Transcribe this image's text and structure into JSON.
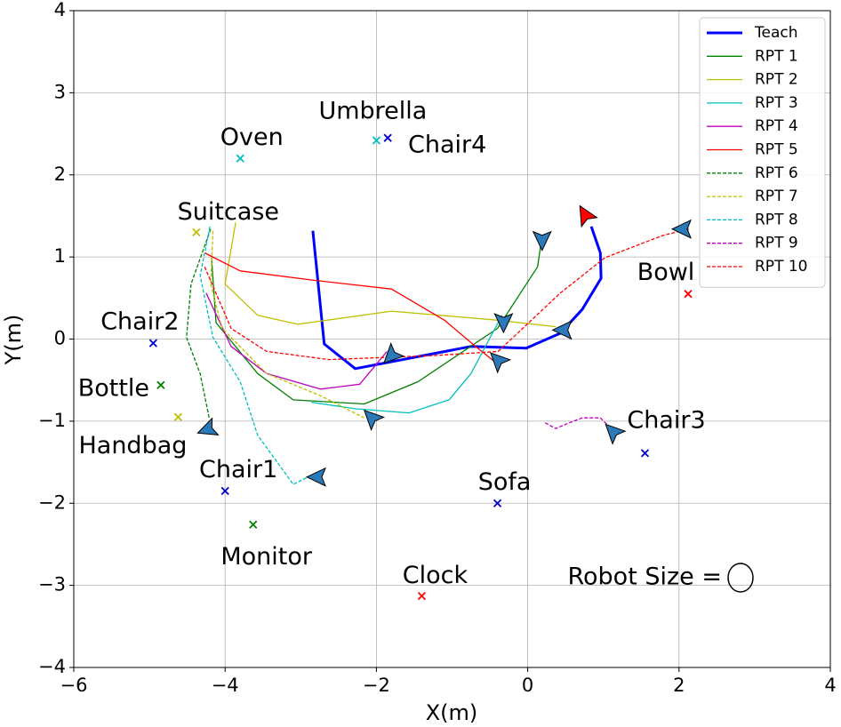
{
  "chart_data": {
    "type": "line",
    "xlabel": "X(m)",
    "ylabel": "Y(m)",
    "xlim": [
      -6,
      4
    ],
    "ylim": [
      -4,
      4
    ],
    "xticks": [
      {
        "value": -6,
        "label": "−6"
      },
      {
        "value": -4,
        "label": "−4"
      },
      {
        "value": -2,
        "label": "−2"
      },
      0,
      2,
      4
    ],
    "yticks": [
      {
        "value": -4,
        "label": "−4"
      },
      {
        "value": -3,
        "label": "−3"
      },
      {
        "value": -2,
        "label": "−2"
      },
      {
        "value": -1,
        "label": "−1"
      },
      0,
      1,
      2,
      3,
      4
    ],
    "grid": true,
    "legend": "upper right",
    "series": [
      {
        "name": "Teach",
        "color": "#0000ff",
        "dashed": false,
        "width": 3,
        "x": [
          -2.84,
          -2.69,
          -2.28,
          -0.75,
          -0.02,
          0.43,
          0.72,
          0.97,
          0.96,
          0.84
        ],
        "y": [
          1.32,
          -0.06,
          -0.36,
          -0.09,
          -0.11,
          0.07,
          0.36,
          0.74,
          1.05,
          1.37
        ]
      },
      {
        "name": "RPT 1",
        "color": "#008000",
        "dashed": false,
        "width": 1.3,
        "x": [
          -4.18,
          -4.12,
          -3.57,
          -3.1,
          -2.16,
          -1.45,
          -0.4,
          0.13,
          0.19
        ],
        "y": [
          0.99,
          0.2,
          -0.42,
          -0.74,
          -0.79,
          -0.52,
          0.13,
          0.88,
          1.26
        ]
      },
      {
        "name": "RPT 2",
        "color": "#bfbf00",
        "dashed": false,
        "width": 1.3,
        "x": [
          -3.86,
          -4.0,
          -3.57,
          -3.04,
          -1.8,
          -0.39,
          0.37
        ],
        "y": [
          1.42,
          0.67,
          0.29,
          0.18,
          0.34,
          0.23,
          0.15
        ]
      },
      {
        "name": "RPT 3",
        "color": "#00bfbf",
        "dashed": false,
        "width": 1.3,
        "x": [
          -2.86,
          -2.27,
          -1.57,
          -1.04,
          -0.75,
          -0.34
        ],
        "y": [
          -0.77,
          -0.85,
          -0.9,
          -0.74,
          -0.42,
          0.29
        ]
      },
      {
        "name": "RPT 4",
        "color": "#bf00bf",
        "dashed": false,
        "width": 1.3,
        "x": [
          -4.25,
          -3.92,
          -3.45,
          -2.74,
          -2.22,
          -1.86
        ],
        "y": [
          0.56,
          -0.09,
          -0.42,
          -0.61,
          -0.55,
          -0.15
        ]
      },
      {
        "name": "RPT 5",
        "color": "#ff0000",
        "dashed": false,
        "width": 1.3,
        "x": [
          -4.27,
          -3.8,
          -2.86,
          -1.8,
          -1.1,
          -0.69,
          -0.39
        ],
        "y": [
          1.05,
          0.83,
          0.72,
          0.61,
          0.23,
          -0.09,
          -0.31
        ]
      },
      {
        "name": "RPT 6",
        "color": "#008000",
        "dashed": true,
        "width": 1.3,
        "x": [
          -4.19,
          -4.45,
          -4.51,
          -4.33,
          -4.21
        ],
        "y": [
          1.34,
          0.67,
          0.02,
          -0.42,
          -0.96
        ]
      },
      {
        "name": "RPT 7",
        "color": "#bfbf00",
        "dashed": true,
        "width": 1.3,
        "x": [
          -4.16,
          -4.19,
          -4.04,
          -3.45,
          -2.74,
          -2.16
        ],
        "y": [
          1.32,
          0.67,
          0.13,
          -0.42,
          -0.69,
          -0.96
        ]
      },
      {
        "name": "RPT 8",
        "color": "#00bfbf",
        "dashed": true,
        "width": 1.3,
        "x": [
          -4.2,
          -4.33,
          -4.16,
          -3.8,
          -3.57,
          -3.1,
          -2.86
        ],
        "y": [
          1.37,
          0.77,
          0.02,
          -0.52,
          -1.17,
          -1.77,
          -1.66
        ]
      },
      {
        "name": "RPT 9",
        "color": "#bf00bf",
        "dashed": true,
        "width": 1.3,
        "x": [
          0.23,
          0.37,
          0.55,
          0.72,
          0.96,
          1.07
        ],
        "y": [
          -1.02,
          -1.09,
          -1.02,
          -0.96,
          -0.96,
          -1.06
        ]
      },
      {
        "name": "RPT 10",
        "color": "#ff0000",
        "dashed": true,
        "width": 1.3,
        "x": [
          -4.27,
          -3.92,
          -3.45,
          -2.63,
          -1.22,
          -0.39,
          0.43,
          1.02,
          1.78,
          2.13
        ],
        "y": [
          0.88,
          0.13,
          -0.15,
          -0.25,
          -0.2,
          -0.15,
          0.56,
          0.99,
          1.26,
          1.34
        ]
      }
    ],
    "objects": [
      {
        "label": "Oven",
        "x": -3.8,
        "y": 2.2,
        "color": "#00bfbf"
      },
      {
        "label": "Umbrella",
        "x": -2.0,
        "y": 2.42,
        "color": "#00bfbf"
      },
      {
        "label": "Chair4",
        "x": -1.85,
        "y": 2.45,
        "color": "#0000cc"
      },
      {
        "label": "Suitcase",
        "x": -4.38,
        "y": 1.3,
        "color": "#bfbf00"
      },
      {
        "label": "Chair2",
        "x": -4.95,
        "y": -0.05,
        "color": "#0000cc"
      },
      {
        "label": "Bottle",
        "x": -4.85,
        "y": -0.56,
        "color": "#008000"
      },
      {
        "label": "Handbag",
        "x": -4.62,
        "y": -0.95,
        "color": "#bfbf00"
      },
      {
        "label": "Chair1",
        "x": -4.0,
        "y": -1.85,
        "color": "#0000cc"
      },
      {
        "label": "Monitor",
        "x": -3.63,
        "y": -2.26,
        "color": "#008000"
      },
      {
        "label": "Sofa",
        "x": -0.4,
        "y": -2.0,
        "color": "#0000cc"
      },
      {
        "label": "Clock",
        "x": -1.4,
        "y": -3.13,
        "color": "#ff0000"
      },
      {
        "label": "Chair3",
        "x": 1.55,
        "y": -1.39,
        "color": "#0000cc"
      },
      {
        "label": "Bowl",
        "x": 2.12,
        "y": 0.55,
        "color": "#ff0000"
      }
    ],
    "poses": [
      {
        "x": 0.19,
        "y": 1.21,
        "heading": -90,
        "color": "#2a7ab9"
      },
      {
        "x": -0.32,
        "y": 0.21,
        "heading": -90,
        "color": "#2a7ab9"
      },
      {
        "x": -1.8,
        "y": -0.2,
        "heading": 225,
        "color": "#2a7ab9"
      },
      {
        "x": -0.39,
        "y": -0.26,
        "heading": 135,
        "color": "#2a7ab9"
      },
      {
        "x": -2.06,
        "y": -0.96,
        "heading": 135,
        "color": "#2a7ab9"
      },
      {
        "x": -4.23,
        "y": -1.1,
        "heading": 200,
        "color": "#2a7ab9"
      },
      {
        "x": -2.78,
        "y": -1.68,
        "heading": 180,
        "color": "#2a7ab9"
      },
      {
        "x": 0.47,
        "y": 0.11,
        "heading": 180,
        "color": "#2a7ab9"
      },
      {
        "x": 2.05,
        "y": 1.34,
        "heading": 180,
        "color": "#2a7ab9"
      },
      {
        "x": 1.13,
        "y": -1.13,
        "heading": 135,
        "color": "#2a7ab9"
      },
      {
        "x": 0.76,
        "y": 1.51,
        "heading": 120,
        "color": "#ff0000"
      }
    ],
    "annotation": "Robot Size ="
  }
}
